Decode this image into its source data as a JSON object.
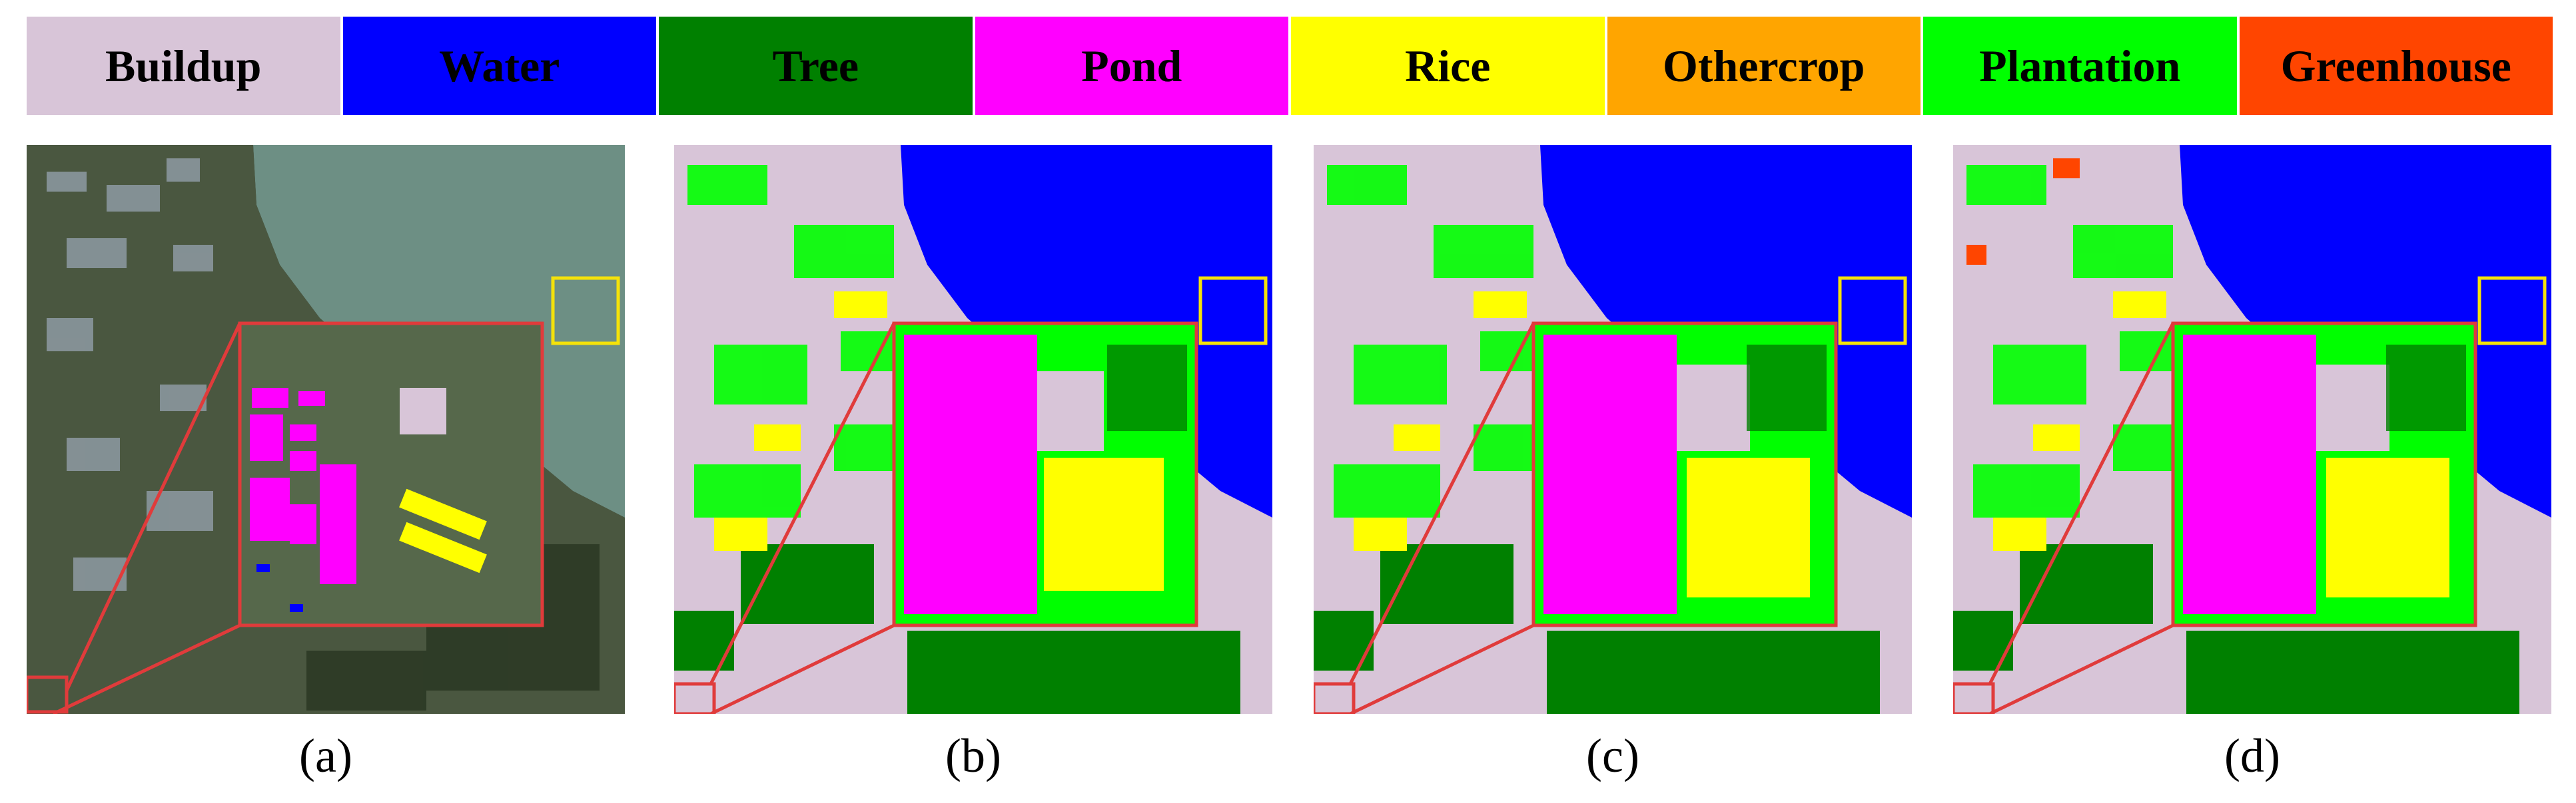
{
  "legend": [
    {
      "label": "Buildup",
      "color": "#d8c5d8"
    },
    {
      "label": "Water",
      "color": "#0000ff"
    },
    {
      "label": "Tree",
      "color": "#008000"
    },
    {
      "label": "Pond",
      "color": "#ff00ff"
    },
    {
      "label": "Rice",
      "color": "#ffff00"
    },
    {
      "label": "Othercrop",
      "color": "#ffa500"
    },
    {
      "label": "Plantation",
      "color": "#00ff00"
    },
    {
      "label": "Greenhouse",
      "color": "#ff4500"
    }
  ],
  "panels": [
    {
      "caption": "(a)",
      "kind": "satellite-image"
    },
    {
      "caption": "(b)",
      "kind": "classification-map"
    },
    {
      "caption": "(c)",
      "kind": "classification-map"
    },
    {
      "caption": "(d)",
      "kind": "classification-map"
    }
  ],
  "colors": {
    "zoom_box": "#e03b3b",
    "highlight_box": "#f5e20a"
  }
}
